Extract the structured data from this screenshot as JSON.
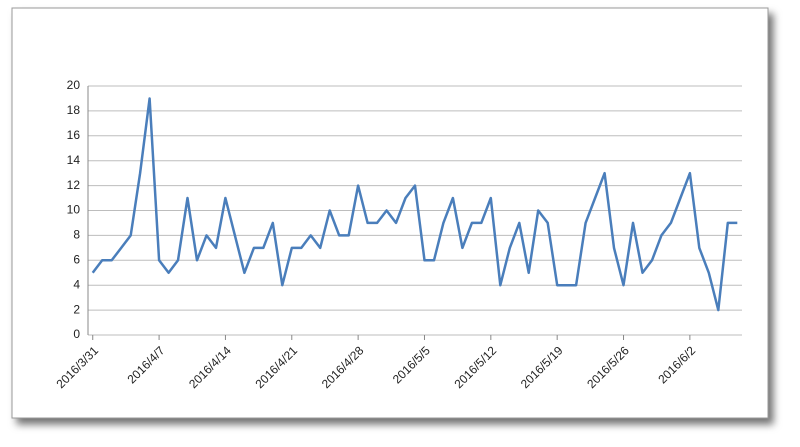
{
  "chart_data": {
    "type": "line",
    "categories": [
      "2016/3/31",
      "2016/4/1",
      "2016/4/2",
      "2016/4/3",
      "2016/4/4",
      "2016/4/5",
      "2016/4/6",
      "2016/4/7",
      "2016/4/8",
      "2016/4/9",
      "2016/4/10",
      "2016/4/11",
      "2016/4/12",
      "2016/4/13",
      "2016/4/14",
      "2016/4/15",
      "2016/4/16",
      "2016/4/17",
      "2016/4/18",
      "2016/4/19",
      "2016/4/20",
      "2016/4/21",
      "2016/4/22",
      "2016/4/23",
      "2016/4/24",
      "2016/4/25",
      "2016/4/26",
      "2016/4/27",
      "2016/4/28",
      "2016/4/29",
      "2016/4/30",
      "2016/5/1",
      "2016/5/2",
      "2016/5/3",
      "2016/5/4",
      "2016/5/5",
      "2016/5/6",
      "2016/5/7",
      "2016/5/8",
      "2016/5/9",
      "2016/5/10",
      "2016/5/11",
      "2016/5/12",
      "2016/5/13",
      "2016/5/14",
      "2016/5/15",
      "2016/5/16",
      "2016/5/17",
      "2016/5/18",
      "2016/5/19",
      "2016/5/20",
      "2016/5/21",
      "2016/5/22",
      "2016/5/23",
      "2016/5/24",
      "2016/5/25",
      "2016/5/26",
      "2016/5/27",
      "2016/5/28",
      "2016/5/29",
      "2016/5/30",
      "2016/5/31",
      "2016/6/1",
      "2016/6/2",
      "2016/6/3",
      "2016/6/4",
      "2016/6/5",
      "2016/6/6",
      "2016/6/7"
    ],
    "xticks": [
      "2016/3/31",
      "2016/4/7",
      "2016/4/14",
      "2016/4/21",
      "2016/4/28",
      "2016/5/5",
      "2016/5/12",
      "2016/5/19",
      "2016/5/26",
      "2016/6/2"
    ],
    "series": [
      {
        "color": "#4a7ebb",
        "values": [
          5,
          6,
          6,
          7,
          8,
          13,
          19,
          6,
          5,
          6,
          11,
          6,
          8,
          7,
          11,
          8,
          5,
          7,
          7,
          9,
          4,
          7,
          7,
          8,
          7,
          10,
          8,
          8,
          12,
          9,
          9,
          10,
          9,
          11,
          12,
          6,
          6,
          9,
          11,
          7,
          9,
          9,
          11,
          4,
          7,
          9,
          5,
          10,
          9,
          4,
          4,
          4,
          9,
          11,
          13,
          7,
          4,
          9,
          5,
          6,
          8,
          9,
          11,
          13,
          7,
          5,
          2,
          9,
          9
        ]
      }
    ],
    "ylim": [
      0,
      20
    ],
    "yticks": [
      0,
      2,
      4,
      6,
      8,
      10,
      12,
      14,
      16,
      18,
      20
    ],
    "grid": true
  }
}
